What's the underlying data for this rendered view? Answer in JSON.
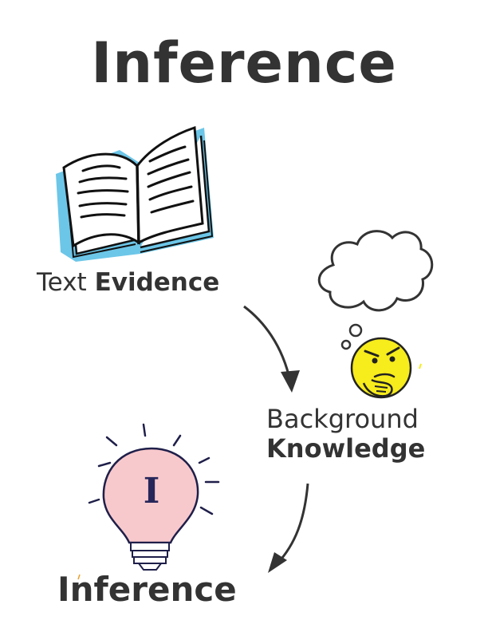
{
  "title": "Inference",
  "nodes": {
    "text_evidence": {
      "light": "Text",
      "bold": "Evidence",
      "icon": "open-book-icon"
    },
    "background_knowledge": {
      "line1": "Background",
      "line2": "Knowledge",
      "icons": [
        "thought-cloud-icon",
        "thinking-face-icon"
      ]
    },
    "inference": {
      "label": "Inference",
      "icon": "lightbulb-icon",
      "bulb_letter": "I"
    }
  },
  "colors": {
    "text": "#333333",
    "book_shadow": "#6cc6e8",
    "bulb_fill": "#f8c9cc",
    "bulb_letter": "#26265a",
    "face_fill": "#f7ec1c",
    "arrow": "#333333"
  }
}
